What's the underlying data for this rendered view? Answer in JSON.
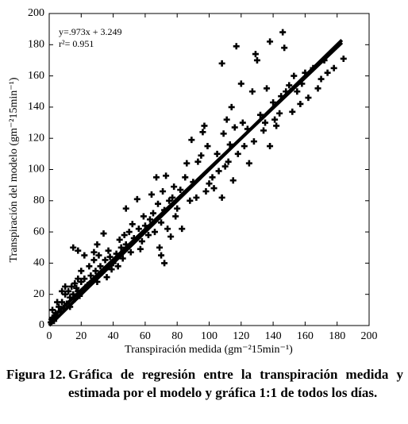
{
  "chart_data": {
    "type": "scatter",
    "annotations": [
      "y=.973x + 3.249",
      "r²= 0.951"
    ],
    "xlabel": "Transpiración medida (gm⁻²15min⁻¹)",
    "ylabel": "Transpiración del modelo (gm⁻²15min⁻¹)",
    "xlim": [
      0,
      200
    ],
    "ylim": [
      0,
      200
    ],
    "xticks": [
      0,
      20,
      40,
      60,
      80,
      100,
      120,
      140,
      160,
      180,
      200
    ],
    "yticks": [
      0,
      20,
      40,
      60,
      80,
      100,
      120,
      140,
      160,
      180,
      200
    ],
    "series": [
      {
        "color": "#000000",
        "marker": "plus",
        "x": [
          1,
          2,
          3,
          4,
          5,
          6,
          7,
          8,
          9,
          10,
          11,
          12,
          13,
          14,
          15,
          16,
          17,
          18,
          19,
          20,
          2,
          5,
          8,
          10,
          13,
          16,
          18,
          20,
          22,
          24,
          25,
          26,
          28,
          29,
          30,
          31,
          32,
          33,
          34,
          35,
          36,
          37,
          38,
          39,
          40,
          15,
          18,
          22,
          28,
          30,
          42,
          43,
          44,
          45,
          46,
          47,
          48,
          50,
          51,
          52,
          53,
          55,
          56,
          57,
          58,
          59,
          60,
          48,
          62,
          63,
          64,
          65,
          66,
          67,
          68,
          69,
          70,
          71,
          72,
          73,
          74,
          75,
          76,
          77,
          78,
          79,
          80,
          72,
          70,
          82,
          83,
          85,
          86,
          88,
          89,
          90,
          92,
          93,
          95,
          96,
          98,
          99,
          100,
          102,
          97,
          103,
          105,
          106,
          108,
          109,
          110,
          111,
          112,
          113,
          114,
          115,
          116,
          117,
          118,
          120,
          121,
          122,
          124,
          125,
          127,
          128,
          129,
          130,
          132,
          134,
          135,
          136,
          138,
          140,
          141,
          142,
          144,
          145,
          146,
          147,
          148,
          150,
          152,
          153,
          155,
          157,
          158,
          108,
          138,
          160,
          162,
          165,
          168,
          170,
          172,
          178,
          184,
          174
        ],
        "values": [
          2,
          5,
          3,
          8,
          6,
          12,
          9,
          15,
          11,
          20,
          14,
          22,
          18,
          25,
          20,
          27,
          24,
          30,
          19,
          28,
          10,
          15,
          22,
          25,
          12,
          17,
          22,
          35,
          30,
          26,
          38,
          32,
          42,
          35,
          28,
          45,
          38,
          34,
          59,
          42,
          31,
          48,
          44,
          36,
          40,
          50,
          48,
          45,
          47,
          52,
          46,
          38,
          55,
          50,
          43,
          58,
          52,
          60,
          47,
          65,
          56,
          81,
          62,
          49,
          54,
          70,
          64,
          75,
          58,
          68,
          84,
          72,
          60,
          95,
          78,
          50,
          66,
          86,
          74,
          96,
          62,
          80,
          57,
          82,
          89,
          70,
          75,
          40,
          45,
          87,
          62,
          95,
          104,
          80,
          119,
          92,
          82,
          105,
          109,
          124,
          86,
          115,
          91,
          95,
          128,
          88,
          110,
          99,
          82,
          123,
          102,
          132,
          105,
          116,
          140,
          93,
          127,
          179,
          110,
          155,
          130,
          115,
          126,
          104,
          150,
          118,
          174,
          170,
          135,
          125,
          130,
          152,
          115,
          143,
          132,
          128,
          136,
          147,
          188,
          178,
          150,
          154,
          137,
          160,
          150,
          142,
          155,
          168,
          182,
          162,
          146,
          165,
          152,
          158,
          170,
          165,
          171,
          162
        ]
      },
      {
        "color": "#000000",
        "marker": "line",
        "x": [
          0,
          183
        ],
        "values": [
          3.249,
          181.308
        ]
      },
      {
        "color": "#000000",
        "marker": "line",
        "x": [
          0,
          183
        ],
        "values": [
          0,
          183
        ]
      }
    ]
  },
  "caption": {
    "label": "Figura 12.",
    "text": "Gráfica de regresión entre la transpiración medida y estimada por el modelo y gráfica 1:1 de todos los días."
  }
}
